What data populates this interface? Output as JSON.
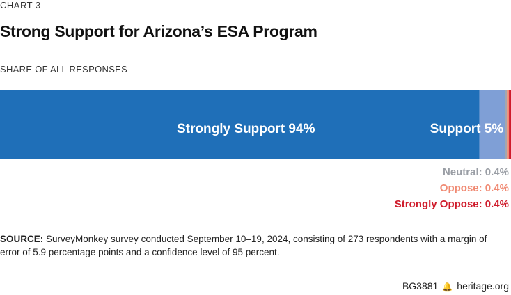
{
  "chart_label": "CHART 3",
  "chart_title": "Strong Support for Arizona’s ESA Program",
  "chart_subtitle": "SHARE OF ALL RESPONSES",
  "chart_data": {
    "type": "bar",
    "orientation": "horizontal",
    "stacked": true,
    "categories": [
      "Strongly Support",
      "Support",
      "Neutral",
      "Oppose",
      "Strongly Oppose"
    ],
    "values": [
      94,
      5,
      0.4,
      0.4,
      0.4
    ],
    "unit": "%",
    "labels": [
      {
        "name": "Strongly Support",
        "value_text": "94%",
        "color": "#1f6fb8"
      },
      {
        "name": "Support",
        "value_text": "5%",
        "color": "#7f9fd6"
      },
      {
        "name": "Neutral",
        "value_text": "0.4%",
        "color": "#a3a7ad"
      },
      {
        "name": "Oppose",
        "value_text": "0.4%",
        "color": "#f08a73"
      },
      {
        "name": "Strongly Oppose",
        "value_text": "0.4%",
        "color": "#cf1b2b"
      }
    ]
  },
  "source": {
    "label": "SOURCE:",
    "text": " SurveyMonkey survey conducted September 10–19, 2024, consisting of 273 respondents with a margin of error of 5.9 percentage points and a confidence level of 95 percent."
  },
  "footer": {
    "code": "BG3881",
    "site": "heritage.org",
    "icon": "bell-icon"
  }
}
